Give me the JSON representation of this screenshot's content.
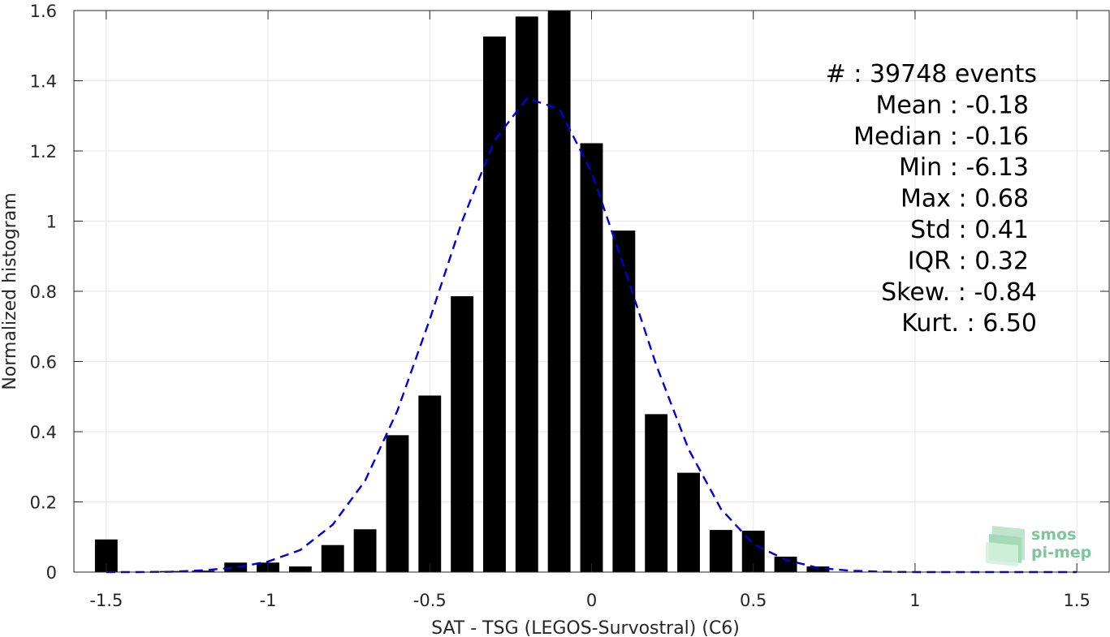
{
  "chart_data": {
    "type": "bar",
    "xlabel": "SAT - TSG (LEGOS-Survostral) (C6)",
    "ylabel": "Normalized histogram",
    "xlim": [
      -1.6,
      1.6
    ],
    "ylim": [
      0,
      1.6
    ],
    "xticks": [
      -1.5,
      -1,
      -0.5,
      0,
      0.5,
      1,
      1.5
    ],
    "xtick_labels": [
      "-1.5",
      "-1",
      "-0.5",
      "0",
      "0.5",
      "1",
      "1.5"
    ],
    "yticks": [
      0,
      0.2,
      0.4,
      0.6,
      0.8,
      1.0,
      1.2,
      1.4,
      1.6
    ],
    "ytick_labels": [
      "0",
      "0.2",
      "0.4",
      "0.6",
      "0.8",
      "1",
      "1.2",
      "1.4",
      "1.6"
    ],
    "grid": true,
    "bar_width": 0.07,
    "bar_color": "#000000",
    "bars": {
      "x": [
        -1.5,
        -1.3,
        -1.2,
        -1.1,
        -1.0,
        -0.9,
        -0.8,
        -0.7,
        -0.6,
        -0.5,
        -0.4,
        -0.3,
        -0.2,
        -0.1,
        0.0,
        0.1,
        0.2,
        0.3,
        0.4,
        0.5,
        0.6,
        0.7
      ],
      "values": [
        0.093,
        0.003,
        0.004,
        0.027,
        0.027,
        0.016,
        0.077,
        0.122,
        0.39,
        0.503,
        0.786,
        1.526,
        1.583,
        1.6,
        1.222,
        0.973,
        0.45,
        0.283,
        0.12,
        0.118,
        0.044,
        0.016
      ]
    },
    "fit_curve": {
      "style": "dashed",
      "color": "#0000dd",
      "x": [
        -1.5,
        -1.4,
        -1.3,
        -1.2,
        -1.1,
        -1.0,
        -0.9,
        -0.8,
        -0.7,
        -0.6,
        -0.5,
        -0.4,
        -0.3,
        -0.2,
        -0.1,
        0.0,
        0.1,
        0.2,
        0.3,
        0.4,
        0.5,
        0.6,
        0.7,
        0.8,
        0.9,
        1.0,
        1.1,
        1.2,
        1.3,
        1.4,
        1.5
      ],
      "y": [
        0.0,
        0.0,
        0.001,
        0.005,
        0.013,
        0.03,
        0.063,
        0.135,
        0.26,
        0.46,
        0.72,
        1.0,
        1.23,
        1.35,
        1.32,
        1.14,
        0.87,
        0.59,
        0.35,
        0.18,
        0.08,
        0.035,
        0.012,
        0.004,
        0.001,
        0.0,
        0.0,
        0.0,
        0.0,
        0.0,
        0.0
      ]
    },
    "stats": [
      {
        "label": "#  : 39748 events"
      },
      {
        "label": "Mean : -0.18"
      },
      {
        "label": "Median : -0.16"
      },
      {
        "label": "Min : -6.13"
      },
      {
        "label": "Max : 0.68"
      },
      {
        "label": "Std : 0.41"
      },
      {
        "label": "IQR : 0.32"
      },
      {
        "label": "Skew. : -0.84"
      },
      {
        "label": "Kurt. : 6.50"
      }
    ]
  },
  "logo": {
    "line1": "smos",
    "line2": "pi-mep",
    "color": "#7dc59a"
  }
}
